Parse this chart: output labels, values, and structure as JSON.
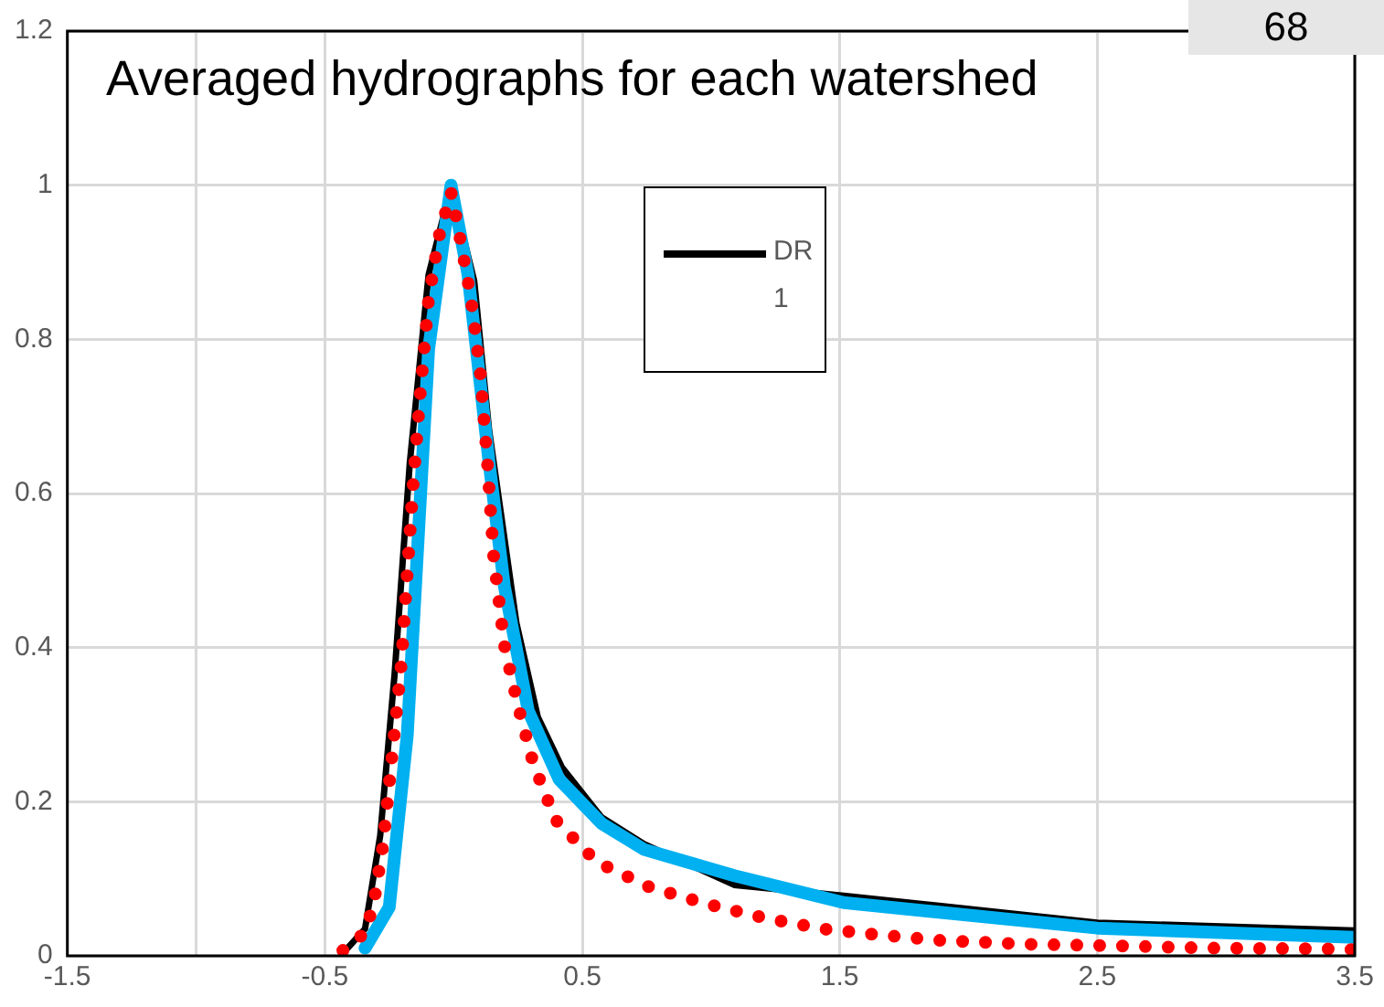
{
  "chart_data": {
    "type": "line",
    "title": "Averaged hydrographs for each watershed",
    "annotations": [
      "68"
    ],
    "xlim": [
      -1.5,
      3.5
    ],
    "xticks": [
      -1.5,
      {
        "value": -1,
        "label": null
      },
      -0.5,
      0.5,
      1.5,
      2.5,
      3.5
    ],
    "ylim": [
      0,
      1.2
    ],
    "yticks": [
      0,
      0.2,
      0.4,
      0.6,
      0.8,
      1,
      1.2
    ],
    "grid": true,
    "legend": "top",
    "marker": "none",
    "series": [
      {
        "name": "DR 1",
        "color": "#000000",
        "line_style": "solid",
        "x": [
          -0.42,
          -0.344,
          -0.285,
          -0.229,
          -0.17,
          -0.097,
          -0.01,
          0.08,
          0.138,
          0.244,
          0.327,
          0.42,
          0.574,
          0.74,
          1.09,
          1.515,
          2.5,
          3.5
        ],
        "values": [
          0.007,
          0.035,
          0.156,
          0.366,
          0.64,
          0.884,
          0.998,
          0.876,
          0.682,
          0.432,
          0.31,
          0.245,
          0.18,
          0.145,
          0.092,
          0.078,
          0.043,
          0.033
        ]
      },
      {
        "color": "#00b0f0",
        "line_style": "solid",
        "x": [
          -0.344,
          -0.25,
          -0.18,
          -0.097,
          -0.01,
          0.056,
          0.138,
          0.197,
          0.29,
          0.41,
          0.574,
          0.74,
          1.09,
          1.515,
          2.5,
          3.5
        ],
        "values": [
          0.01,
          0.063,
          0.286,
          0.787,
          1.0,
          0.884,
          0.64,
          0.48,
          0.318,
          0.229,
          0.172,
          0.138,
          0.104,
          0.069,
          0.036,
          0.024
        ]
      },
      {
        "color": "#ff0000",
        "line_style": "dotted",
        "x": [
          -0.43,
          -0.344,
          -0.31,
          -0.274,
          -0.238,
          -0.203,
          -0.18,
          -0.156,
          -0.128,
          -0.097,
          -0.057,
          -0.01,
          0.013,
          0.056,
          0.075,
          0.103,
          0.131,
          0.155,
          0.197,
          0.249,
          0.31,
          0.397,
          0.555,
          0.762,
          0.986,
          1.21,
          1.433,
          1.657,
          1.89,
          2.23,
          2.575,
          2.93,
          3.375,
          3.5
        ],
        "values": [
          0.007,
          0.03,
          0.068,
          0.144,
          0.262,
          0.379,
          0.496,
          0.617,
          0.735,
          0.852,
          0.933,
          0.991,
          0.953,
          0.875,
          0.835,
          0.759,
          0.642,
          0.52,
          0.403,
          0.326,
          0.249,
          0.176,
          0.122,
          0.089,
          0.067,
          0.049,
          0.035,
          0.027,
          0.02,
          0.015,
          0.013,
          0.01,
          0.009,
          0.008
        ]
      }
    ]
  }
}
